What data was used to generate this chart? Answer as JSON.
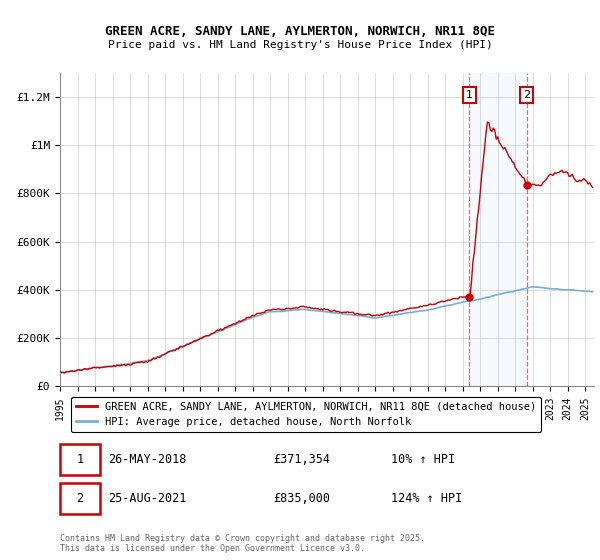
{
  "title_line1": "GREEN ACRE, SANDY LANE, AYLMERTON, NORWICH, NR11 8QE",
  "title_line2": "Price paid vs. HM Land Registry's House Price Index (HPI)",
  "ylabel_ticks": [
    "£0",
    "£200K",
    "£400K",
    "£600K",
    "£800K",
    "£1M",
    "£1.2M"
  ],
  "ytick_values": [
    0,
    200000,
    400000,
    600000,
    800000,
    1000000,
    1200000
  ],
  "ylim": [
    0,
    1300000
  ],
  "xlim_start": 1995,
  "xlim_end": 2025.5,
  "legend_line1": "GREEN ACRE, SANDY LANE, AYLMERTON, NORWICH, NR11 8QE (detached house)",
  "legend_line2": "HPI: Average price, detached house, North Norfolk",
  "annotation1_label": "1",
  "annotation1_date": "26-MAY-2018",
  "annotation1_price": "£371,354",
  "annotation1_hpi": "10% ↑ HPI",
  "annotation2_label": "2",
  "annotation2_date": "25-AUG-2021",
  "annotation2_price": "£835,000",
  "annotation2_hpi": "124% ↑ HPI",
  "sale1_x": 2018.38,
  "sale1_y": 371354,
  "sale2_x": 2021.65,
  "sale2_y": 835000,
  "property_color": "#cc0000",
  "hpi_color": "#7aadd4",
  "shaded_color": "#ddeeff",
  "dashed_color": "#ee6666",
  "copyright_text": "Contains HM Land Registry data © Crown copyright and database right 2025.\nThis data is licensed under the Open Government Licence v3.0.",
  "background_color": "#ffffff",
  "grid_color": "#cccccc"
}
